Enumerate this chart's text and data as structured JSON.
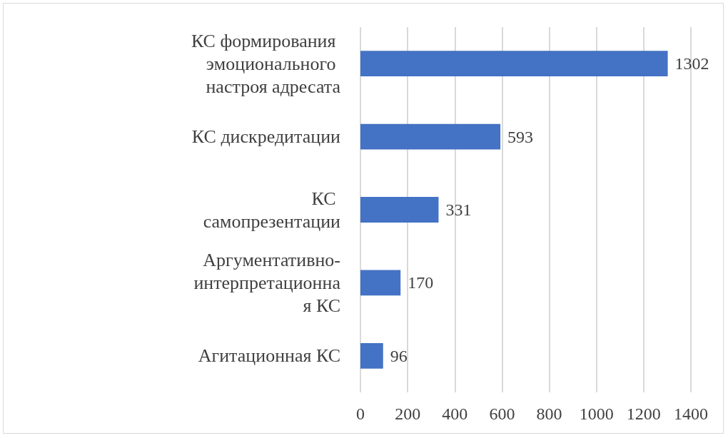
{
  "chart_data": {
    "type": "bar",
    "orientation": "horizontal",
    "categories": [
      "КС формирования эмоционального настроя адресата",
      "КС дискредитации",
      "КС самопрезентации",
      "Аргументативно-интерпретационная КС",
      "Агитационная КС"
    ],
    "values": [
      1302,
      593,
      331,
      170,
      96
    ],
    "color": "#4472c4",
    "xlim": [
      0,
      1400
    ],
    "xticks": [
      0,
      200,
      400,
      600,
      800,
      1000,
      1200,
      1400
    ],
    "grid": "x",
    "data_labels": true
  }
}
